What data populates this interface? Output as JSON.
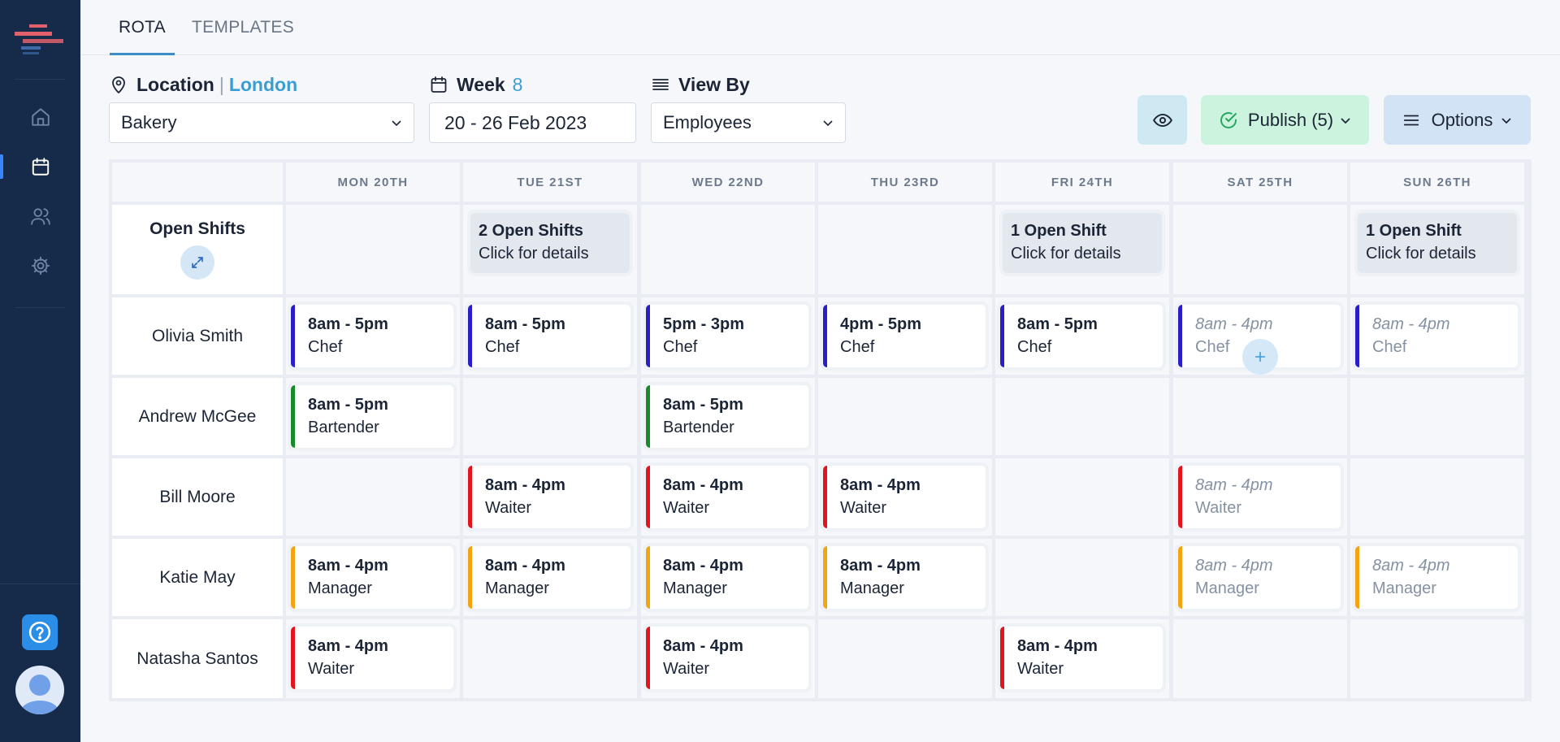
{
  "tabs": [
    {
      "label": "ROTA",
      "active": true
    },
    {
      "label": "TEMPLATES",
      "active": false
    }
  ],
  "filters": {
    "location": {
      "label": "Location",
      "value": "London",
      "select": "Bakery"
    },
    "week": {
      "label": "Week",
      "value": "8",
      "range": "20 - 26 Feb 2023"
    },
    "view_by": {
      "label": "View By",
      "select": "Employees"
    }
  },
  "actions": {
    "publish_label": "Publish (5)",
    "options_label": "Options"
  },
  "days": [
    "MON 20TH",
    "TUE 21ST",
    "WED 22ND",
    "THU 23RD",
    "FRI 24TH",
    "SAT 25TH",
    "SUN 26TH"
  ],
  "open_shifts_row": {
    "label": "Open Shifts",
    "cells": [
      null,
      {
        "title": "2 Open Shifts",
        "sub": "Click for details"
      },
      null,
      null,
      {
        "title": "1 Open Shift",
        "sub": "Click for details"
      },
      null,
      {
        "title": "1 Open Shift",
        "sub": "Click for details"
      }
    ]
  },
  "employees": [
    {
      "name": "Olivia Smith",
      "shifts": [
        {
          "time": "8am - 5pm",
          "role": "Chef",
          "draft": false
        },
        {
          "time": "8am - 5pm",
          "role": "Chef",
          "draft": false
        },
        {
          "time": "5pm - 3pm",
          "role": "Chef",
          "draft": false
        },
        {
          "time": "4pm - 5pm",
          "role": "Chef",
          "draft": false
        },
        {
          "time": "8am - 5pm",
          "role": "Chef",
          "draft": false
        },
        {
          "time": "8am - 4pm",
          "role": "Chef",
          "draft": true
        },
        {
          "time": "8am - 4pm",
          "role": "Chef",
          "draft": true
        }
      ]
    },
    {
      "name": "Andrew McGee",
      "shifts": [
        {
          "time": "8am - 5pm",
          "role": "Bartender",
          "draft": false
        },
        null,
        {
          "time": "8am - 5pm",
          "role": "Bartender",
          "draft": false
        },
        null,
        null,
        null,
        null
      ]
    },
    {
      "name": "Bill Moore",
      "shifts": [
        null,
        {
          "time": "8am - 4pm",
          "role": "Waiter",
          "draft": false
        },
        {
          "time": "8am - 4pm",
          "role": "Waiter",
          "draft": false
        },
        {
          "time": "8am - 4pm",
          "role": "Waiter",
          "draft": false
        },
        null,
        {
          "time": "8am - 4pm",
          "role": "Waiter",
          "draft": true
        },
        null
      ]
    },
    {
      "name": "Katie May",
      "shifts": [
        {
          "time": "8am - 4pm",
          "role": "Manager",
          "draft": false
        },
        {
          "time": "8am - 4pm",
          "role": "Manager",
          "draft": false
        },
        {
          "time": "8am - 4pm",
          "role": "Manager",
          "draft": false
        },
        {
          "time": "8am - 4pm",
          "role": "Manager",
          "draft": false
        },
        null,
        {
          "time": "8am - 4pm",
          "role": "Manager",
          "draft": true
        },
        {
          "time": "8am - 4pm",
          "role": "Manager",
          "draft": true
        }
      ]
    },
    {
      "name": "Natasha Santos",
      "shifts": [
        {
          "time": "8am - 4pm",
          "role": "Waiter",
          "draft": false
        },
        null,
        {
          "time": "8am - 4pm",
          "role": "Waiter",
          "draft": false
        },
        null,
        {
          "time": "8am - 4pm",
          "role": "Waiter",
          "draft": false
        },
        null,
        null
      ]
    }
  ],
  "role_colors": {
    "Chef": "#2a1fc7",
    "Bartender": "#188a2a",
    "Waiter": "#e3141c",
    "Manager": "#f2a413"
  },
  "sidebar": {
    "nav": [
      "home-icon",
      "calendar-icon",
      "users-icon",
      "settings-icon"
    ],
    "active": "calendar-icon",
    "help_icon": "help-icon"
  }
}
